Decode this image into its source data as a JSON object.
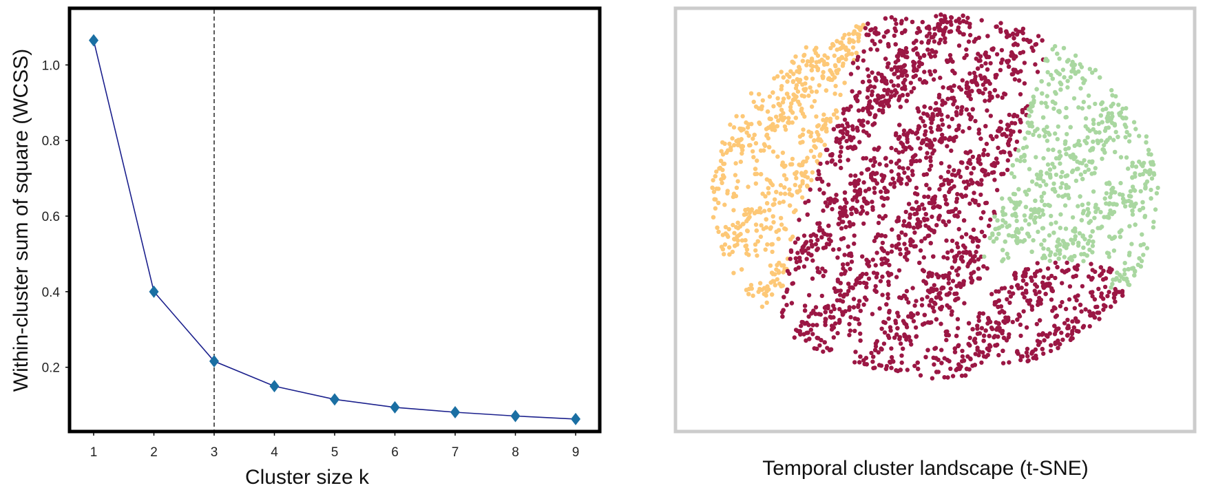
{
  "chart_data": [
    {
      "type": "line",
      "title": "",
      "xlabel": "Cluster size k",
      "ylabel": "Within-cluster sum of square (WCSS)",
      "x": [
        1,
        2,
        3,
        4,
        5,
        6,
        7,
        8,
        9
      ],
      "xticks": [
        "1",
        "2",
        "3",
        "4",
        "5",
        "6",
        "7",
        "8",
        "9"
      ],
      "yticks": [
        "0.2",
        "0.4",
        "0.6",
        "0.8",
        "1.0"
      ],
      "xlim": [
        0.6,
        9.4
      ],
      "ylim": [
        0.03,
        1.15
      ],
      "series": [
        {
          "values": [
            1.065,
            0.4,
            0.216,
            0.15,
            0.115,
            0.094,
            0.081,
            0.071,
            0.063
          ],
          "color": "#1f5fa0",
          "marker_color": "#1a6fa3",
          "marker": "diamond",
          "line_color": "#1a1f8c"
        }
      ],
      "reference_line": {
        "x": 3,
        "style": "dashed",
        "color": "#222222"
      },
      "grid": false
    },
    {
      "type": "scatter",
      "title": "",
      "caption": "Temporal cluster landscape (t-SNE)",
      "xlabel": "",
      "ylabel": "",
      "axes_visible": false,
      "clusters": [
        {
          "color": "#fdc877",
          "region": "left"
        },
        {
          "color": "#9b1744",
          "region": "center"
        },
        {
          "color": "#a9d7a0",
          "region": "right"
        }
      ]
    }
  ]
}
